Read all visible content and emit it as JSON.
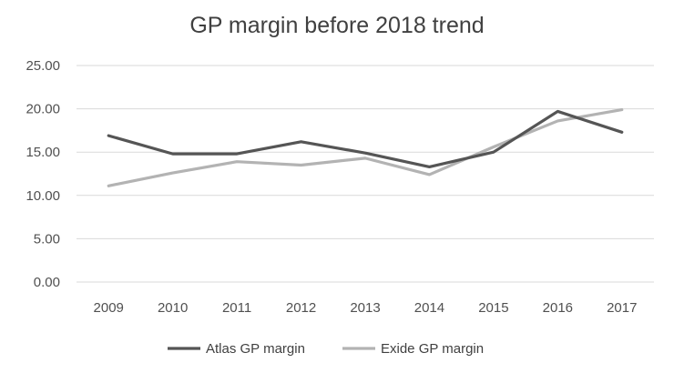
{
  "chart_data": {
    "type": "line",
    "title": "GP margin before 2018 trend",
    "categories": [
      "2009",
      "2010",
      "2011",
      "2012",
      "2013",
      "2014",
      "2015",
      "2016",
      "2017"
    ],
    "series": [
      {
        "name": "Atlas GP margin",
        "color": "#555555",
        "values": [
          16.9,
          14.8,
          14.8,
          16.2,
          14.9,
          13.3,
          15.0,
          19.7,
          17.3
        ]
      },
      {
        "name": "Exide GP margin",
        "color": "#b3b3b3",
        "values": [
          11.1,
          12.6,
          13.9,
          13.5,
          14.3,
          12.4,
          15.6,
          18.6,
          19.9
        ]
      }
    ],
    "y_ticks": [
      "0.00",
      "5.00",
      "10.00",
      "15.00",
      "20.00",
      "25.00"
    ],
    "ylim": [
      0,
      25
    ],
    "grid": true,
    "legend_position": "bottom"
  }
}
